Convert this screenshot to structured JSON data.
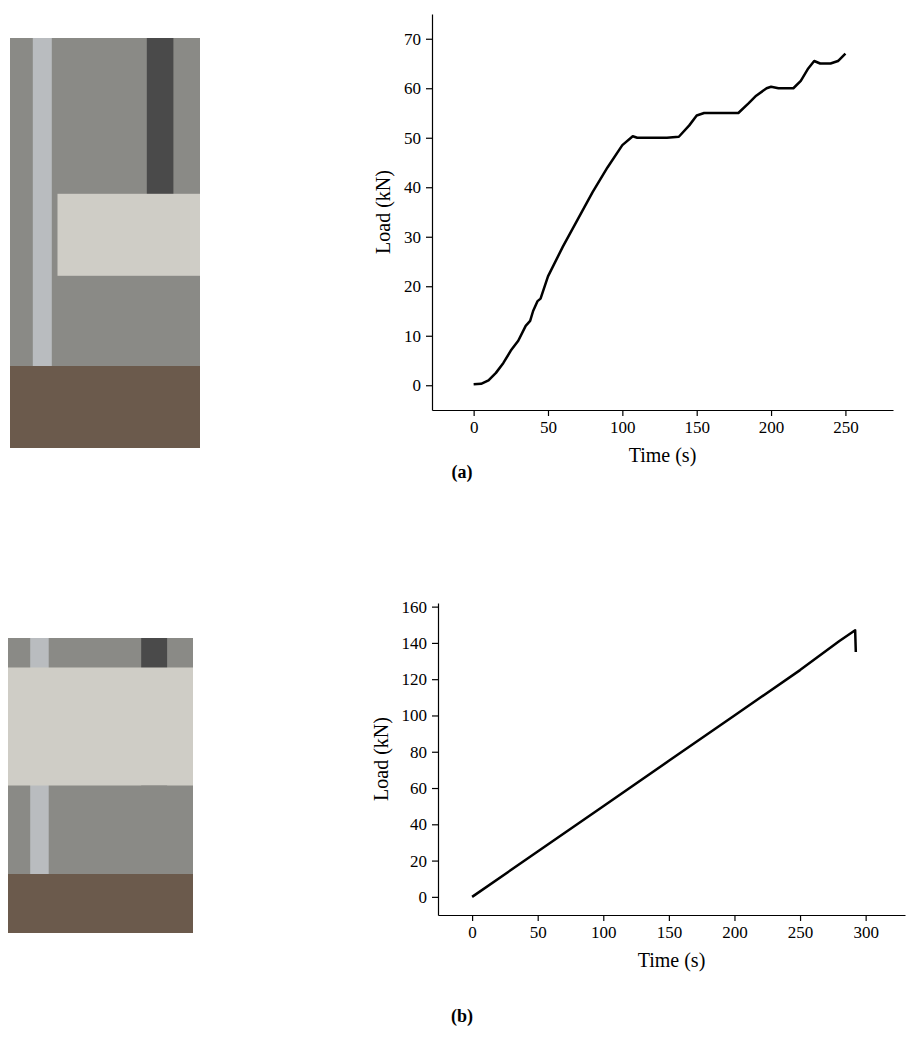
{
  "chart_data": [
    {
      "type": "line",
      "panel_label": "(a)",
      "x_label": "Time (s)",
      "y_label": "Load (kN)",
      "color": "#000000",
      "x": [
        0,
        5,
        10,
        15,
        20,
        25,
        30,
        35,
        38,
        40,
        43,
        45,
        50,
        60,
        70,
        80,
        90,
        100,
        107,
        110,
        120,
        130,
        138,
        145,
        150,
        155,
        165,
        178,
        185,
        190,
        197,
        200,
        205,
        215,
        220,
        225,
        229,
        233,
        240,
        245,
        250
      ],
      "values": [
        0.2,
        0.3,
        1,
        2.5,
        4.5,
        7,
        9,
        12,
        13,
        15,
        17,
        17.5,
        22,
        28,
        33.5,
        39,
        44,
        48.5,
        50.3,
        50,
        50,
        50,
        50.2,
        52.5,
        54.5,
        55,
        55,
        55,
        57,
        58.5,
        60,
        60.3,
        60,
        60,
        61.5,
        64,
        65.5,
        65,
        65,
        65.5,
        67
      ],
      "xlim": [
        -28,
        282
      ],
      "ylim": [
        -5,
        75
      ],
      "xticks": [
        0,
        50,
        100,
        150,
        200,
        250
      ],
      "yticks": [
        0,
        10,
        20,
        30,
        40,
        50,
        60,
        70
      ]
    },
    {
      "type": "line",
      "panel_label": "(b)",
      "x_label": "Time (s)",
      "y_label": "Load (kN)",
      "color": "#000000",
      "x": [
        0,
        50,
        100,
        150,
        200,
        250,
        280,
        292,
        292.5
      ],
      "values": [
        0,
        25,
        50,
        75,
        100,
        125,
        141,
        147,
        135
      ],
      "xlim": [
        -26,
        330
      ],
      "ylim": [
        -10,
        162
      ],
      "xticks": [
        0,
        50,
        100,
        150,
        200,
        250,
        300
      ],
      "yticks": [
        0,
        20,
        40,
        60,
        80,
        100,
        120,
        140,
        160
      ]
    }
  ]
}
